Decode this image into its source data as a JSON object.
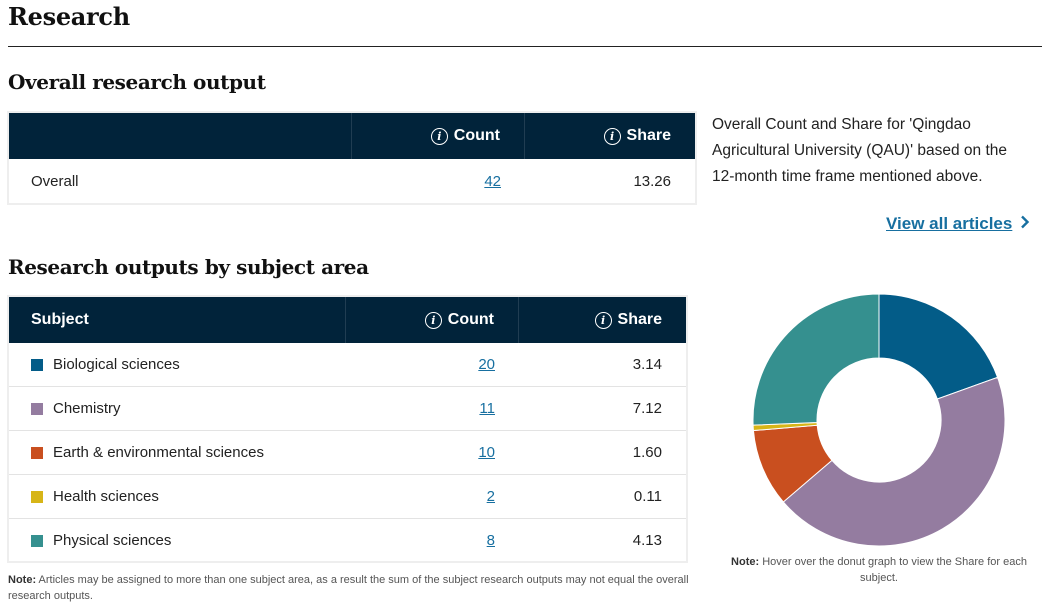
{
  "page": {
    "title": "Research"
  },
  "overall": {
    "heading": "Overall research output",
    "headers": {
      "count": "Count",
      "share": "Share"
    },
    "row": {
      "label": "Overall",
      "count": "42",
      "share": "13.26"
    },
    "description": "Overall Count and Share for 'Qingdao Agricultural University (QAU)' based on the 12-month time frame mentioned above.",
    "view_all": "View all articles"
  },
  "subjects": {
    "heading": "Research outputs by subject area",
    "headers": {
      "subject": "Subject",
      "count": "Count",
      "share": "Share"
    },
    "rows": [
      {
        "name": "Biological sciences",
        "count": "20",
        "share": "3.14",
        "color": "#035c88"
      },
      {
        "name": "Chemistry",
        "count": "11",
        "share": "7.12",
        "color": "#947ca0"
      },
      {
        "name": "Earth & environmental sciences",
        "count": "10",
        "share": "1.60",
        "color": "#c94f1f"
      },
      {
        "name": "Health sciences",
        "count": "2",
        "share": "0.11",
        "color": "#d7b517"
      },
      {
        "name": "Physical sciences",
        "count": "8",
        "share": "4.13",
        "color": "#35908f"
      }
    ],
    "note_label": "Note:",
    "note_text": " Articles may be assigned to more than one subject area, as a result the sum of the subject research outputs may not equal the overall research outputs."
  },
  "donut_note": {
    "label": "Note:",
    "text": " Hover over the donut graph to view the Share for each subject."
  },
  "chart_data": {
    "type": "pie",
    "variant": "donut",
    "categories": [
      "Biological sciences",
      "Chemistry",
      "Earth & environmental sciences",
      "Health sciences",
      "Physical sciences"
    ],
    "values": [
      3.14,
      7.12,
      1.6,
      0.11,
      4.13
    ],
    "colors": [
      "#035c88",
      "#947ca0",
      "#c94f1f",
      "#d7b517",
      "#35908f"
    ],
    "title": "Research outputs by subject area (Share)"
  }
}
